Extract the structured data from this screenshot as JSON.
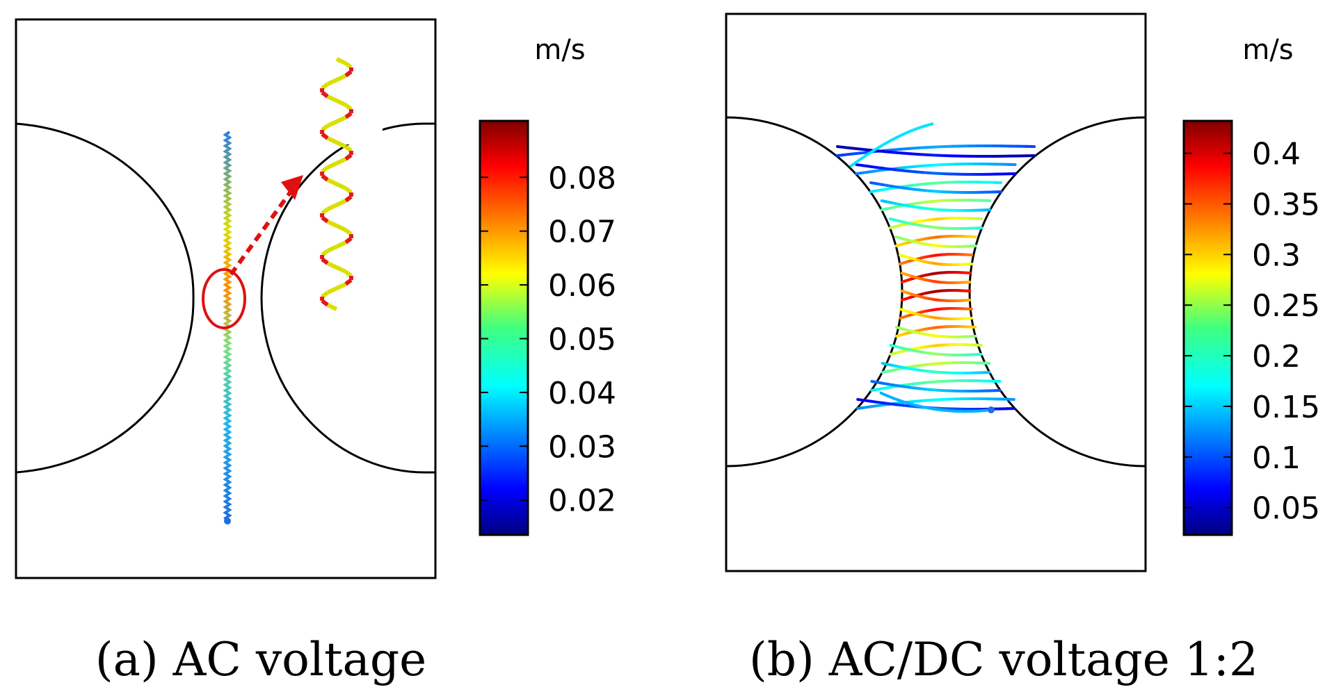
{
  "panels": [
    {
      "caption": "(a) AC voltage",
      "colorbar": {
        "unit": "m/s",
        "min": 0.0135,
        "max": 0.0905,
        "ticks": [
          "0.08",
          "0.07",
          "0.06",
          "0.05",
          "0.04",
          "0.03",
          "0.02"
        ],
        "tick_values": [
          0.08,
          0.07,
          0.06,
          0.05,
          0.04,
          0.03,
          0.02
        ]
      }
    },
    {
      "caption": "(b) AC/DC voltage 1:2",
      "colorbar": {
        "unit": "m/s",
        "min": 0.023,
        "max": 0.432,
        "ticks": [
          "0.4",
          "0.35",
          "0.3",
          "0.25",
          "0.2",
          "0.15",
          "0.1",
          "0.05"
        ],
        "tick_values": [
          0.4,
          0.35,
          0.3,
          0.25,
          0.2,
          0.15,
          0.1,
          0.05
        ]
      }
    }
  ],
  "colors": {
    "frame": "#000000",
    "highlight": "#e01010",
    "start_point": "#1e6fe0",
    "colormap": [
      "#00007f",
      "#0000ff",
      "#007fff",
      "#00ffff",
      "#7fff7f",
      "#ffff00",
      "#ff7f00",
      "#ff0000",
      "#7f0000"
    ]
  }
}
